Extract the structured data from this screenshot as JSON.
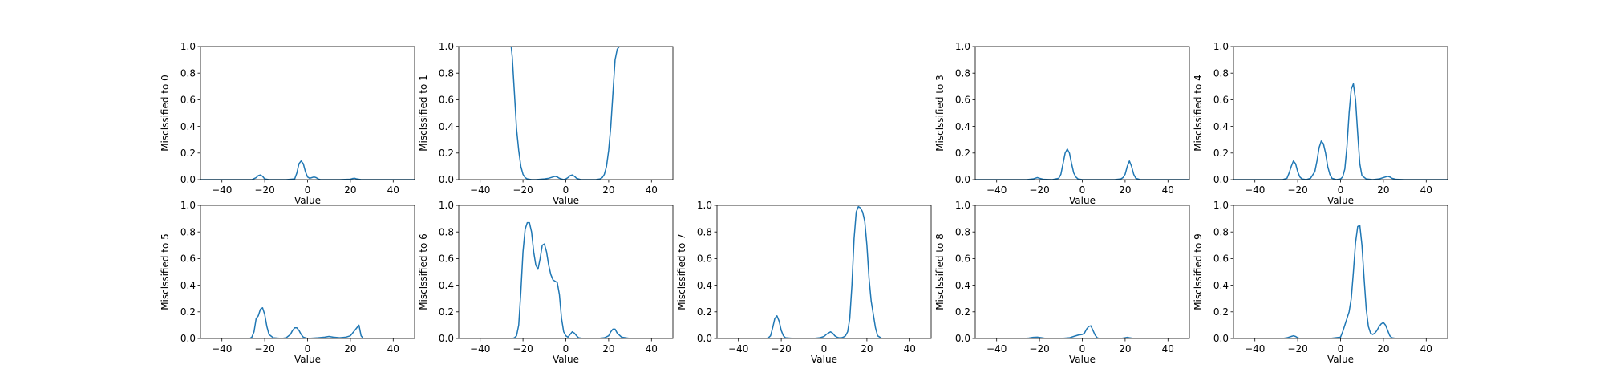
{
  "colors": {
    "line": "#1f77b4",
    "axes": "#000000",
    "background": "#ffffff"
  },
  "chart_data": [
    {
      "type": "line",
      "xlabel": "Value",
      "ylabel": "Misclssified to 0",
      "xlim": [
        -50,
        50
      ],
      "ylim": [
        0,
        1
      ],
      "xticks": [
        -40,
        -20,
        0,
        20,
        40
      ],
      "yticks": [
        0.0,
        0.2,
        0.4,
        0.6,
        0.8,
        1.0
      ],
      "x": [
        -50,
        -30,
        -26,
        -24,
        -23,
        -22,
        -21,
        -20,
        -18,
        -10,
        -6,
        -5,
        -4,
        -3,
        -2,
        -1,
        0,
        1,
        2,
        3,
        4,
        5,
        6,
        8,
        15,
        20,
        21,
        22,
        23,
        25,
        30,
        50
      ],
      "y": [
        0,
        0,
        0,
        0.015,
        0.03,
        0.035,
        0.025,
        0.005,
        0,
        0,
        0.005,
        0.05,
        0.12,
        0.14,
        0.12,
        0.06,
        0.02,
        0.01,
        0.015,
        0.02,
        0.015,
        0.005,
        0,
        0,
        0,
        0.003,
        0.008,
        0.01,
        0.005,
        0,
        0,
        0
      ]
    },
    {
      "type": "line",
      "xlabel": "Value",
      "ylabel": "Misclssified to 1",
      "xlim": [
        -50,
        50
      ],
      "ylim": [
        0,
        1
      ],
      "xticks": [
        -40,
        -20,
        0,
        20,
        40
      ],
      "yticks": [
        0.0,
        0.2,
        0.4,
        0.6,
        0.8,
        1.0
      ],
      "x": [
        -25.5,
        -25,
        -24,
        -23,
        -22,
        -21,
        -20,
        -19,
        -18,
        -16,
        -14,
        -10,
        -8,
        -6,
        -5,
        -4,
        -3,
        -2,
        -1,
        0,
        1,
        2,
        3,
        4,
        5,
        6,
        7,
        8,
        10,
        14,
        16,
        17,
        18,
        19,
        20,
        21,
        22,
        23,
        24,
        25,
        25.5
      ],
      "y": [
        1.0,
        0.92,
        0.65,
        0.38,
        0.22,
        0.1,
        0.04,
        0.015,
        0.005,
        0,
        0,
        0.005,
        0.01,
        0.02,
        0.025,
        0.02,
        0.01,
        0.005,
        0,
        0.005,
        0.015,
        0.03,
        0.035,
        0.025,
        0.01,
        0.005,
        0,
        0,
        0,
        0,
        0.005,
        0.015,
        0.04,
        0.1,
        0.22,
        0.4,
        0.65,
        0.9,
        0.98,
        1.0,
        1.0
      ]
    },
    {
      "type": "line",
      "xlabel": "Value",
      "ylabel": "Misclssified to 3",
      "xlim": [
        -50,
        50
      ],
      "ylim": [
        0,
        1
      ],
      "xticks": [
        -40,
        -20,
        0,
        20,
        40
      ],
      "yticks": [
        0.0,
        0.2,
        0.4,
        0.6,
        0.8,
        1.0
      ],
      "x": [
        -50,
        -26,
        -23,
        -22,
        -21,
        -20,
        -18,
        -14,
        -11,
        -10,
        -9,
        -8,
        -7,
        -6,
        -5,
        -4,
        -3,
        -2,
        0,
        2,
        5,
        10,
        15,
        18,
        19,
        20,
        21,
        22,
        23,
        24,
        25,
        27,
        30,
        50
      ],
      "y": [
        0,
        0,
        0.005,
        0.01,
        0.015,
        0.01,
        0.002,
        0,
        0.01,
        0.04,
        0.12,
        0.2,
        0.23,
        0.2,
        0.12,
        0.05,
        0.02,
        0.005,
        0,
        0,
        0,
        0,
        0,
        0.005,
        0.015,
        0.04,
        0.1,
        0.14,
        0.1,
        0.04,
        0.01,
        0,
        0,
        0
      ]
    },
    {
      "type": "line",
      "xlabel": "Value",
      "ylabel": "Misclssified to 4",
      "xlim": [
        -50,
        50
      ],
      "ylim": [
        0,
        1
      ],
      "xticks": [
        -40,
        -20,
        0,
        20,
        40
      ],
      "yticks": [
        0.0,
        0.2,
        0.4,
        0.6,
        0.8,
        1.0
      ],
      "x": [
        -50,
        -27,
        -25,
        -24,
        -23,
        -22,
        -21,
        -20,
        -19,
        -18,
        -16,
        -14,
        -12,
        -11,
        -10,
        -9,
        -8,
        -7,
        -6,
        -5,
        -4,
        -2,
        0,
        1,
        2,
        3,
        4,
        5,
        6,
        7,
        8,
        9,
        10,
        12,
        15,
        18,
        19,
        20,
        21,
        22,
        23,
        24,
        26,
        30,
        50
      ],
      "y": [
        0,
        0,
        0.01,
        0.05,
        0.1,
        0.14,
        0.12,
        0.06,
        0.02,
        0.005,
        0,
        0.01,
        0.06,
        0.14,
        0.24,
        0.29,
        0.27,
        0.2,
        0.1,
        0.04,
        0.01,
        0,
        0.005,
        0.02,
        0.08,
        0.25,
        0.5,
        0.68,
        0.72,
        0.6,
        0.35,
        0.12,
        0.03,
        0.005,
        0,
        0.005,
        0.01,
        0.015,
        0.02,
        0.025,
        0.02,
        0.01,
        0.002,
        0,
        0
      ]
    },
    {
      "type": "line",
      "xlabel": "Value",
      "ylabel": "Misclssified to 5",
      "xlim": [
        -50,
        50
      ],
      "ylim": [
        0,
        1
      ],
      "xticks": [
        -40,
        -20,
        0,
        20,
        40
      ],
      "yticks": [
        0.0,
        0.2,
        0.4,
        0.6,
        0.8,
        1.0
      ],
      "x": [
        -50,
        -27,
        -26,
        -25,
        -24,
        -23,
        -22,
        -21,
        -20,
        -19,
        -18,
        -16,
        -12,
        -10,
        -8,
        -7,
        -6,
        -5,
        -4,
        -3,
        -2,
        0,
        5,
        8,
        10,
        12,
        15,
        18,
        20,
        21,
        22,
        23,
        24,
        25,
        26,
        30,
        50
      ],
      "y": [
        0,
        0,
        0.01,
        0.05,
        0.15,
        0.17,
        0.22,
        0.23,
        0.18,
        0.09,
        0.03,
        0.005,
        0,
        0.005,
        0.03,
        0.06,
        0.08,
        0.08,
        0.06,
        0.03,
        0.01,
        0,
        0.005,
        0.01,
        0.015,
        0.01,
        0.005,
        0.01,
        0.02,
        0.04,
        0.06,
        0.08,
        0.1,
        0.02,
        0,
        0,
        0
      ]
    },
    {
      "type": "line",
      "xlabel": "Value",
      "ylabel": "Misclssified to 6",
      "xlim": [
        -50,
        50
      ],
      "ylim": [
        0,
        1
      ],
      "xticks": [
        -40,
        -20,
        0,
        20,
        40
      ],
      "yticks": [
        0.0,
        0.2,
        0.4,
        0.6,
        0.8,
        1.0
      ],
      "x": [
        -50,
        -25,
        -24,
        -23,
        -22,
        -21,
        -20,
        -19,
        -18,
        -17,
        -16,
        -15,
        -14,
        -13,
        -12,
        -11,
        -10,
        -9,
        -8,
        -7,
        -6,
        -5,
        -4,
        -3,
        -2,
        -1,
        0,
        1,
        2,
        3,
        4,
        5,
        6,
        8,
        15,
        18,
        20,
        21,
        22,
        23,
        24,
        26,
        30,
        50
      ],
      "y": [
        0,
        0,
        0.005,
        0.02,
        0.1,
        0.35,
        0.65,
        0.82,
        0.87,
        0.87,
        0.8,
        0.65,
        0.55,
        0.52,
        0.6,
        0.7,
        0.71,
        0.65,
        0.55,
        0.48,
        0.44,
        0.43,
        0.42,
        0.33,
        0.15,
        0.05,
        0.02,
        0.01,
        0.03,
        0.05,
        0.04,
        0.02,
        0.005,
        0,
        0,
        0.005,
        0.02,
        0.05,
        0.07,
        0.07,
        0.04,
        0.01,
        0,
        0
      ]
    },
    {
      "type": "line",
      "xlabel": "Value",
      "ylabel": "Misclssified to 7",
      "xlim": [
        -50,
        50
      ],
      "ylim": [
        0,
        1
      ],
      "xticks": [
        -40,
        -20,
        0,
        20,
        40
      ],
      "yticks": [
        0.0,
        0.2,
        0.4,
        0.6,
        0.8,
        1.0
      ],
      "x": [
        -50,
        -27,
        -26,
        -25,
        -24,
        -23,
        -22,
        -21,
        -20,
        -19,
        -18,
        -14,
        -5,
        -2,
        0,
        1,
        2,
        3,
        4,
        5,
        6,
        7,
        8,
        9,
        10,
        11,
        12,
        13,
        14,
        15,
        16,
        17,
        18,
        19,
        20,
        21,
        22,
        23,
        24,
        25,
        27,
        30,
        50
      ],
      "y": [
        0,
        0,
        0.005,
        0.02,
        0.08,
        0.15,
        0.17,
        0.13,
        0.06,
        0.02,
        0.005,
        0,
        0,
        0.005,
        0.015,
        0.03,
        0.04,
        0.05,
        0.04,
        0.02,
        0.01,
        0.005,
        0.005,
        0.01,
        0.02,
        0.05,
        0.15,
        0.4,
        0.75,
        0.95,
        0.99,
        0.98,
        0.95,
        0.88,
        0.7,
        0.45,
        0.28,
        0.18,
        0.08,
        0.02,
        0,
        0,
        0
      ]
    },
    {
      "type": "line",
      "xlabel": "Value",
      "ylabel": "Misclssified to 8",
      "xlim": [
        -50,
        50
      ],
      "ylim": [
        0,
        1
      ],
      "xticks": [
        -40,
        -20,
        0,
        20,
        40
      ],
      "yticks": [
        0.0,
        0.2,
        0.4,
        0.6,
        0.8,
        1.0
      ],
      "x": [
        -50,
        -27,
        -25,
        -23,
        -21,
        -19,
        -17,
        -10,
        -6,
        -4,
        -2,
        0,
        1,
        2,
        3,
        4,
        5,
        6,
        7,
        8,
        12,
        18,
        20,
        21,
        22,
        24,
        30,
        50
      ],
      "y": [
        0,
        0,
        0.003,
        0.008,
        0.01,
        0.005,
        0,
        0,
        0.005,
        0.015,
        0.025,
        0.03,
        0.04,
        0.07,
        0.09,
        0.095,
        0.06,
        0.025,
        0.005,
        0,
        0,
        0,
        0.005,
        0.008,
        0.005,
        0,
        0,
        0
      ]
    },
    {
      "type": "line",
      "xlabel": "Value",
      "ylabel": "Misclssified to 9",
      "xlim": [
        -50,
        50
      ],
      "ylim": [
        0,
        1
      ],
      "xticks": [
        -40,
        -20,
        0,
        20,
        40
      ],
      "yticks": [
        0.0,
        0.2,
        0.4,
        0.6,
        0.8,
        1.0
      ],
      "x": [
        -50,
        -27,
        -25,
        -24,
        -23,
        -22,
        -21,
        -20,
        -19,
        -17,
        -5,
        0,
        1,
        2,
        3,
        4,
        5,
        6,
        7,
        8,
        9,
        10,
        11,
        12,
        13,
        14,
        15,
        16,
        17,
        18,
        19,
        20,
        21,
        22,
        23,
        24,
        26,
        30,
        50
      ],
      "y": [
        0,
        0,
        0.005,
        0.01,
        0.015,
        0.02,
        0.015,
        0.005,
        0,
        0,
        0,
        0.01,
        0.05,
        0.1,
        0.15,
        0.2,
        0.3,
        0.5,
        0.72,
        0.84,
        0.85,
        0.7,
        0.45,
        0.22,
        0.09,
        0.04,
        0.03,
        0.04,
        0.06,
        0.09,
        0.11,
        0.12,
        0.1,
        0.06,
        0.02,
        0.005,
        0,
        0,
        0
      ]
    }
  ]
}
